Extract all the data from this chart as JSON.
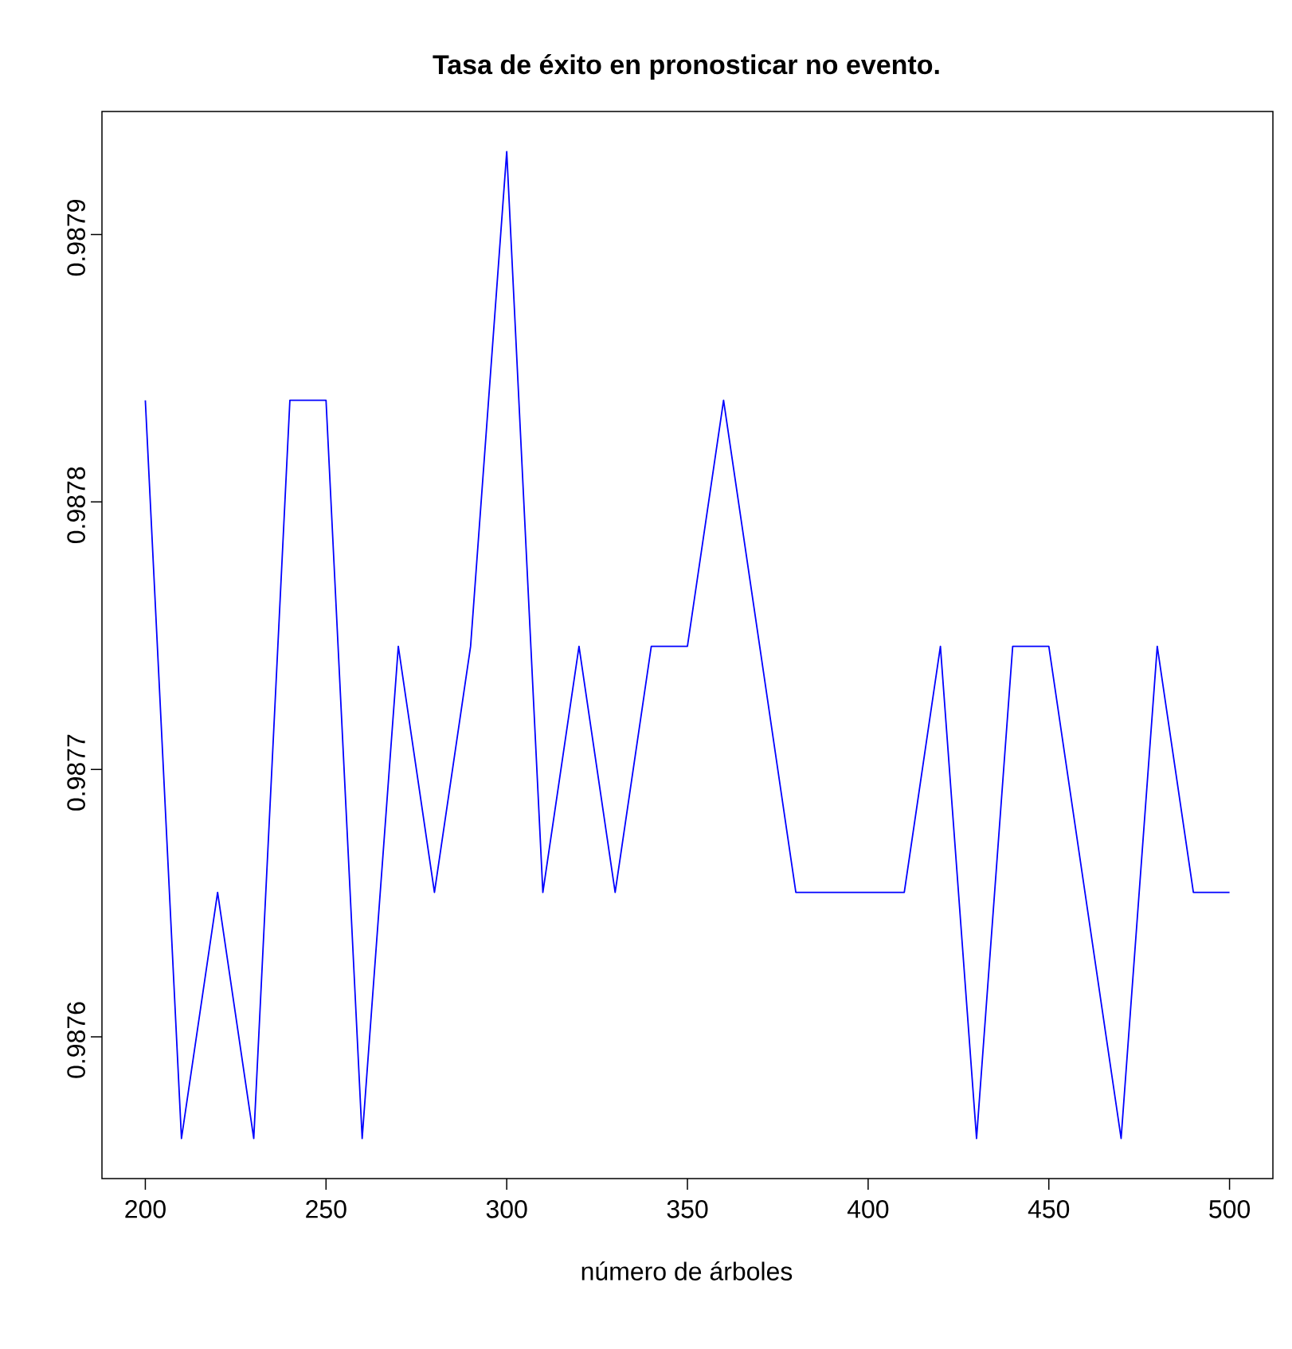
{
  "chart_data": {
    "type": "line",
    "title": "Tasa de éxito en pronosticar no evento.",
    "xlabel": "número de árboles",
    "x": [
      200,
      210,
      220,
      230,
      240,
      250,
      260,
      270,
      280,
      290,
      300,
      310,
      320,
      330,
      340,
      350,
      360,
      370,
      380,
      390,
      400,
      410,
      420,
      430,
      440,
      450,
      460,
      470,
      480,
      490,
      500
    ],
    "series": [
      {
        "color": "#0000ff",
        "values": [
          0.987838,
          0.987562,
          0.987654,
          0.987562,
          0.987838,
          0.987838,
          0.987562,
          0.987746,
          0.987654,
          0.987746,
          0.987931,
          0.987654,
          0.987746,
          0.987654,
          0.987746,
          0.987746,
          0.987838,
          0.987746,
          0.987654,
          0.987654,
          0.987654,
          0.987654,
          0.987746,
          0.987562,
          0.987746,
          0.987746,
          0.987654,
          0.987562,
          0.987746,
          0.987654,
          0.987654
        ]
      }
    ],
    "xlim": [
      188,
      512
    ],
    "ylim": [
      0.987547,
      0.987946
    ],
    "xticks": [
      200,
      250,
      300,
      350,
      400,
      450,
      500
    ],
    "yticks": [
      0.9876,
      0.9877,
      0.9878,
      0.9879
    ],
    "grid": false,
    "marker": "none",
    "line_style": "solid"
  }
}
